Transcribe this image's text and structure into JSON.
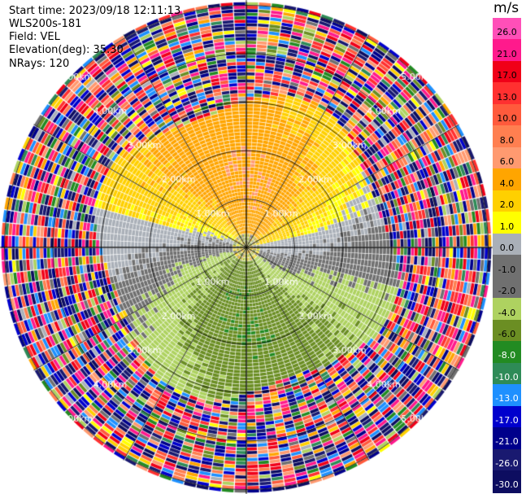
{
  "header": {
    "start_time": "Start time: 2023/09/18 12:11:13",
    "instrument": "WLS200s-181",
    "field": "Field: VEL",
    "elevation": "Elevation(deg): 35.30",
    "nrays": "NRays: 120"
  },
  "colorbar": {
    "unit": "m/s",
    "ticks": [
      "26.0",
      "21.0",
      "17.0",
      "13.0",
      "10.0",
      "8.0",
      "6.0",
      "4.0",
      "2.0",
      "1.0",
      "0.0",
      "-1.0",
      "-2.0",
      "-4.0",
      "-6.0",
      "-8.0",
      "-10.0",
      "-13.0",
      "-17.0",
      "-21.0",
      "-26.0",
      "-30.0"
    ],
    "colors": [
      "#ff4fb8",
      "#ff1a8c",
      "#f00018",
      "#ff3030",
      "#ff5a3c",
      "#ff7f50",
      "#ff9a70",
      "#ffa500",
      "#ffd000",
      "#ffff00",
      "#aab0b8",
      "#707070",
      "#707070",
      "#aed260",
      "#6b8e23",
      "#228b22",
      "#2e8b57",
      "#1e90ff",
      "#0000cd",
      "#00008b",
      "#191970",
      "#0d0d60"
    ]
  },
  "chart_data": {
    "type": "ppi",
    "field": "VEL",
    "units": "m/s",
    "nrays": 120,
    "range_ring_labels": [
      "1.00km",
      "2.00km",
      "3.00km",
      "4.00km",
      "5.00km"
    ],
    "range_rings_km": [
      1,
      2,
      3,
      4,
      5
    ],
    "color_scale": {
      "bounds": [
        -30.0,
        -26.0,
        -21.0,
        -17.0,
        -13.0,
        -10.0,
        -8.0,
        -6.0,
        -4.0,
        -2.0,
        -1.0,
        0.0,
        1.0,
        2.0,
        4.0,
        6.0,
        8.0,
        10.0,
        13.0,
        17.0,
        21.0,
        26.0
      ]
    },
    "pattern": {
      "near_field_km": 0.3,
      "positive_zone": "north half, 0.3–2.8 km: +2 to +6 m/s (yellow/orange)",
      "zero_zone": "west and south-east crescents: -1 to +1 m/s (grey)",
      "negative_zone": "south half, 0.3–3.0 km: -2 to -6 m/s (green)",
      "noise_zone": "beyond ~3.0 km: random values across full scale"
    }
  }
}
